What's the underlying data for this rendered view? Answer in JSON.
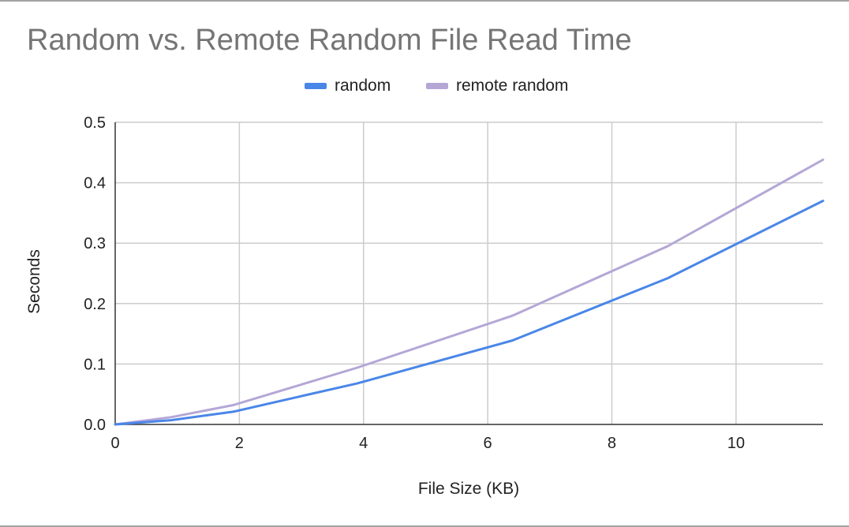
{
  "chart_data": {
    "type": "line",
    "title": "Random vs. Remote Random File Read Time",
    "xlabel": "File Size (KB)",
    "ylabel": "Seconds",
    "xlim": [
      0,
      11.4
    ],
    "ylim": [
      0,
      0.5
    ],
    "x_ticks": [
      "0",
      "2",
      "4",
      "6",
      "8",
      "10"
    ],
    "x_tick_values": [
      0,
      2,
      4,
      6,
      8,
      10
    ],
    "y_ticks": [
      "0.0",
      "0.1",
      "0.2",
      "0.3",
      "0.4",
      "0.5"
    ],
    "y_tick_values": [
      0,
      0.1,
      0.2,
      0.3,
      0.4,
      0.5
    ],
    "grid": true,
    "legend_position": "top",
    "series": [
      {
        "name": "random",
        "color": "#4a86e8",
        "x": [
          0,
          0.9,
          1.9,
          3.9,
          6.4,
          8.9,
          11.4
        ],
        "y": [
          0,
          0.007,
          0.021,
          0.068,
          0.139,
          0.242,
          0.37
        ]
      },
      {
        "name": "remote random",
        "color": "#b4a7d6",
        "x": [
          0,
          0.9,
          1.9,
          3.9,
          6.4,
          8.9,
          11.4
        ],
        "y": [
          0,
          0.012,
          0.032,
          0.094,
          0.18,
          0.295,
          0.438
        ]
      }
    ]
  }
}
